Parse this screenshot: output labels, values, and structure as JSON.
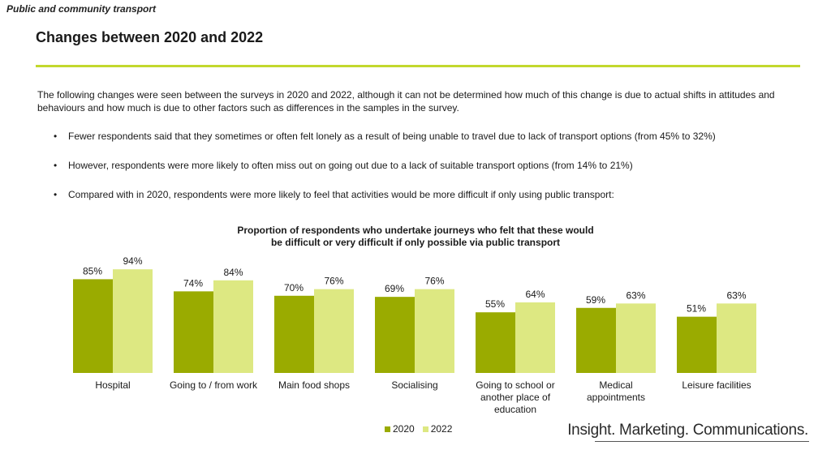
{
  "header": {
    "section": "Public and community transport",
    "title": "Changes between 2020 and 2022"
  },
  "intro": "The following changes were seen between the surveys in 2020 and 2022, although it can not be determined how much of this change is due to actual shifts in attitudes and behaviours and how much is due to other factors such as differences in the samples in the survey.",
  "bullets": [
    "Fewer respondents said that they sometimes or often felt lonely as a result of being unable to travel due to lack of transport options (from 45% to 32%)",
    "However, respondents were more likely to often miss out on going out due to a lack of suitable transport options (from 14% to 21%)",
    "Compared with in 2020, respondents were more likely to feel that activities would be more difficult if only using public transport:"
  ],
  "bullet_glyph": "•",
  "brand": "Insight. Marketing. Communications.",
  "colors": {
    "accent_rule": "#c2d82d",
    "series_2020": "#9aab00",
    "series_2022": "#dde882"
  },
  "chart_data": {
    "type": "bar",
    "title_line1": "Proportion of respondents who undertake journeys who felt that these would",
    "title_line2": "be difficult or very difficult if only possible via public transport",
    "categories": [
      [
        "Hospital"
      ],
      [
        "Going to / from work"
      ],
      [
        "Main food shops"
      ],
      [
        "Socialising"
      ],
      [
        "Going to school or",
        "another place of",
        "education"
      ],
      [
        "Medical",
        "appointments"
      ],
      [
        "Leisure facilities"
      ]
    ],
    "series": [
      {
        "name": "2020",
        "values": [
          85,
          74,
          70,
          69,
          55,
          59,
          51
        ],
        "labels": [
          "85%",
          "74%",
          "70%",
          "69%",
          "55%",
          "59%",
          "51%"
        ]
      },
      {
        "name": "2022",
        "values": [
          94,
          84,
          76,
          76,
          64,
          63,
          63
        ],
        "labels": [
          "94%",
          "84%",
          "76%",
          "76%",
          "64%",
          "63%",
          "63%"
        ]
      }
    ],
    "ylim": [
      0,
      100
    ],
    "legend": "bottom-center"
  }
}
